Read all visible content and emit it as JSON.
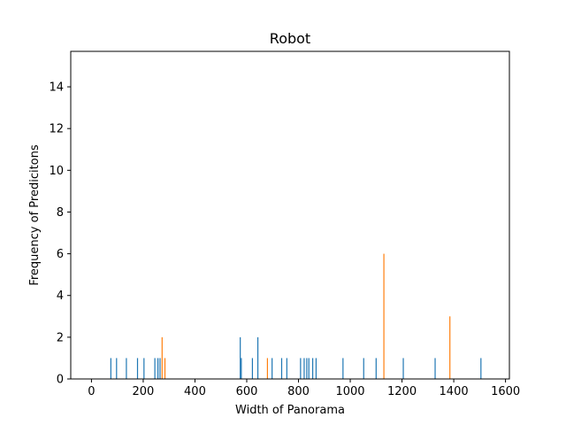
{
  "chart_data": {
    "type": "bar",
    "title": "Robot",
    "xlabel": "Width of Panorama",
    "ylabel": "Frequency of Predicitons",
    "xlim": [
      -80,
      1615
    ],
    "ylim": [
      0,
      15.7
    ],
    "xticks": [
      0,
      200,
      400,
      600,
      800,
      1000,
      1200,
      1400,
      1600
    ],
    "yticks": [
      0,
      2,
      4,
      6,
      8,
      10,
      12,
      14
    ],
    "grid": false,
    "series": [
      {
        "color": "#1f77b4",
        "points": [
          {
            "x": 75,
            "y": 1
          },
          {
            "x": 97,
            "y": 1
          },
          {
            "x": 135,
            "y": 1
          },
          {
            "x": 178,
            "y": 1
          },
          {
            "x": 203,
            "y": 1
          },
          {
            "x": 245,
            "y": 1
          },
          {
            "x": 257,
            "y": 1
          },
          {
            "x": 265,
            "y": 1
          },
          {
            "x": 575,
            "y": 2
          },
          {
            "x": 579,
            "y": 1
          },
          {
            "x": 622,
            "y": 1
          },
          {
            "x": 643,
            "y": 2
          },
          {
            "x": 698,
            "y": 1
          },
          {
            "x": 735,
            "y": 1
          },
          {
            "x": 755,
            "y": 1
          },
          {
            "x": 808,
            "y": 1
          },
          {
            "x": 822,
            "y": 1
          },
          {
            "x": 832,
            "y": 1
          },
          {
            "x": 840,
            "y": 1
          },
          {
            "x": 855,
            "y": 1
          },
          {
            "x": 868,
            "y": 1
          },
          {
            "x": 972,
            "y": 1
          },
          {
            "x": 1052,
            "y": 1
          },
          {
            "x": 1100,
            "y": 1
          },
          {
            "x": 1205,
            "y": 1
          },
          {
            "x": 1328,
            "y": 1
          },
          {
            "x": 1505,
            "y": 1
          }
        ]
      },
      {
        "color": "#ff7f0e",
        "points": [
          {
            "x": 273,
            "y": 2
          },
          {
            "x": 284,
            "y": 1
          },
          {
            "x": 680,
            "y": 1
          },
          {
            "x": 1130,
            "y": 6
          },
          {
            "x": 1385,
            "y": 3
          }
        ]
      }
    ]
  }
}
